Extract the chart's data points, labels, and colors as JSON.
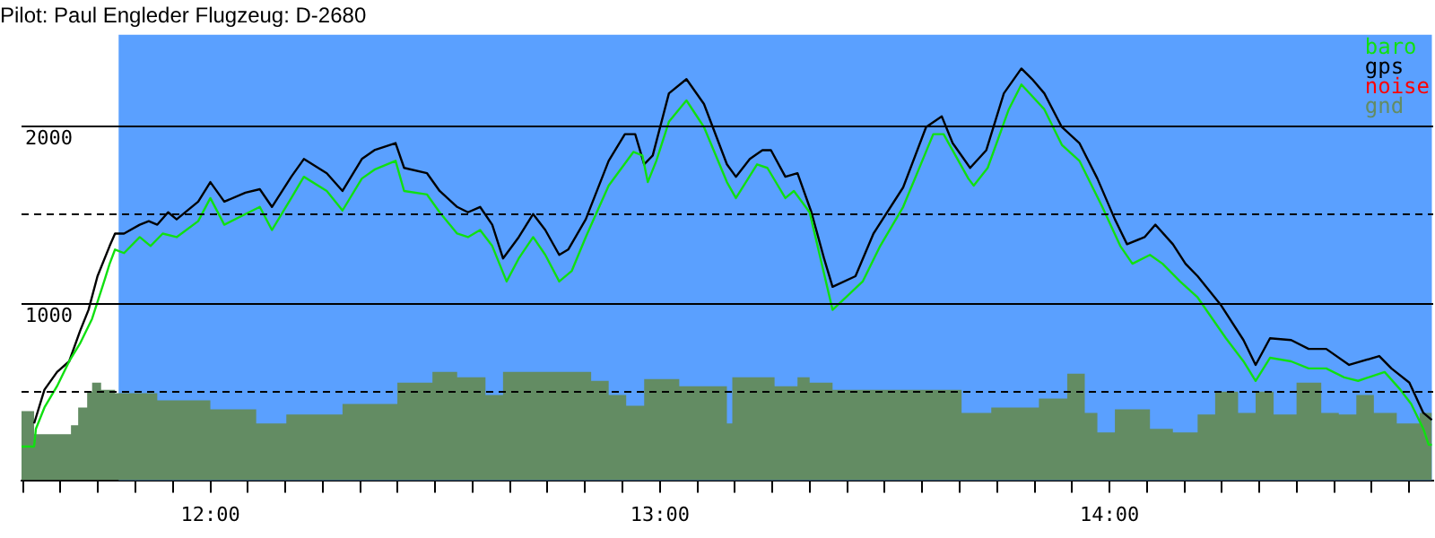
{
  "chart_data": {
    "type": "line",
    "title": "Pilot: Paul Engleder Flugzeug: D-2680",
    "xlim": [
      11.58,
      14.72
    ],
    "xticks": [
      {
        "value": 11.5833,
        "label": null
      },
      {
        "value": 11.6667,
        "label": null
      },
      {
        "value": 11.75,
        "label": null
      },
      {
        "value": 11.8333,
        "label": null
      },
      {
        "value": 11.9167,
        "label": null
      },
      {
        "value": 12,
        "label": "12:00"
      },
      {
        "value": 12.0833,
        "label": null
      },
      {
        "value": 12.1667,
        "label": null
      },
      {
        "value": 12.25,
        "label": null
      },
      {
        "value": 12.3333,
        "label": null
      },
      {
        "value": 12.4167,
        "label": null
      },
      {
        "value": 12.5,
        "label": null
      },
      {
        "value": 12.5833,
        "label": null
      },
      {
        "value": 12.6667,
        "label": null
      },
      {
        "value": 12.75,
        "label": null
      },
      {
        "value": 12.8333,
        "label": null
      },
      {
        "value": 12.9167,
        "label": null
      },
      {
        "value": 13,
        "label": "13:00"
      },
      {
        "value": 13.0833,
        "label": null
      },
      {
        "value": 13.1667,
        "label": null
      },
      {
        "value": 13.25,
        "label": null
      },
      {
        "value": 13.3333,
        "label": null
      },
      {
        "value": 13.4167,
        "label": null
      },
      {
        "value": 13.5,
        "label": null
      },
      {
        "value": 13.5833,
        "label": null
      },
      {
        "value": 13.6667,
        "label": null
      },
      {
        "value": 13.75,
        "label": null
      },
      {
        "value": 13.8333,
        "label": null
      },
      {
        "value": 13.9167,
        "label": null
      },
      {
        "value": 14,
        "label": "14:00"
      },
      {
        "value": 14.0833,
        "label": null
      },
      {
        "value": 14.1667,
        "label": null
      },
      {
        "value": 14.25,
        "label": null
      },
      {
        "value": 14.3333,
        "label": null
      },
      {
        "value": 14.4167,
        "label": null
      },
      {
        "value": 14.5,
        "label": null
      },
      {
        "value": 14.5833,
        "label": null
      },
      {
        "value": 14.6667,
        "label": null
      }
    ],
    "ylim": [
      0,
      2510
    ],
    "yticks": [
      {
        "value": 500,
        "label": null
      },
      1000,
      {
        "value": 1500,
        "label": null
      },
      2000
    ],
    "grid": "y",
    "legend": "top right",
    "bands": [
      {
        "axis": "x",
        "from": 11.796,
        "to": 14.717,
        "color": "#5aa0ff"
      }
    ],
    "series": [
      {
        "name": "gnd",
        "type": "area",
        "color": "#638c63",
        "x": [
          11.58,
          11.608,
          11.608,
          11.69,
          11.69,
          11.706,
          11.706,
          11.726,
          11.726,
          11.737,
          11.737,
          11.757,
          11.757,
          11.788,
          11.788,
          11.882,
          11.882,
          12.0,
          12.0,
          12.102,
          12.102,
          12.169,
          12.169,
          12.294,
          12.294,
          12.416,
          12.416,
          12.494,
          12.494,
          12.549,
          12.549,
          12.612,
          12.612,
          12.651,
          12.651,
          12.847,
          12.847,
          12.886,
          12.886,
          12.925,
          12.925,
          12.965,
          12.965,
          13.043,
          13.043,
          13.149,
          13.149,
          13.161,
          13.161,
          13.255,
          13.255,
          13.306,
          13.306,
          13.333,
          13.333,
          13.384,
          13.384,
          13.671,
          13.671,
          13.737,
          13.737,
          13.843,
          13.843,
          13.906,
          13.906,
          13.945,
          13.945,
          13.973,
          13.973,
          14.012,
          14.012,
          14.09,
          14.09,
          14.141,
          14.141,
          14.196,
          14.196,
          14.235,
          14.235,
          14.286,
          14.286,
          14.325,
          14.325,
          14.365,
          14.365,
          14.416,
          14.416,
          14.471,
          14.471,
          14.51,
          14.51,
          14.549,
          14.549,
          14.588,
          14.588,
          14.639,
          14.639,
          14.69,
          14.69,
          14.717
        ],
        "values": [
          390,
          390,
          260,
          260,
          310,
          310,
          410,
          410,
          500,
          500,
          550,
          550,
          510,
          510,
          490,
          490,
          450,
          450,
          400,
          400,
          320,
          320,
          370,
          370,
          430,
          430,
          550,
          550,
          610,
          610,
          580,
          580,
          480,
          480,
          610,
          610,
          560,
          560,
          480,
          480,
          420,
          420,
          570,
          570,
          530,
          530,
          320,
          320,
          580,
          580,
          530,
          530,
          580,
          580,
          550,
          550,
          510,
          510,
          380,
          380,
          410,
          410,
          460,
          460,
          600,
          600,
          380,
          380,
          270,
          270,
          400,
          400,
          290,
          290,
          270,
          270,
          370,
          370,
          500,
          500,
          380,
          380,
          500,
          500,
          370,
          370,
          550,
          550,
          380,
          380,
          370,
          370,
          480,
          480,
          380,
          380,
          320,
          320,
          380,
          380
        ]
      },
      {
        "name": "baro",
        "color": "#10e010",
        "x": [
          11.58,
          11.608,
          11.612,
          11.631,
          11.659,
          11.686,
          11.71,
          11.737,
          11.765,
          11.776,
          11.788,
          11.808,
          11.843,
          11.867,
          11.894,
          11.925,
          11.973,
          12.0,
          12.031,
          12.078,
          12.11,
          12.137,
          12.18,
          12.208,
          12.259,
          12.294,
          12.337,
          12.365,
          12.412,
          12.431,
          12.482,
          12.51,
          12.549,
          12.573,
          12.6,
          12.627,
          12.659,
          12.686,
          12.718,
          12.745,
          12.776,
          12.804,
          12.835,
          12.886,
          12.941,
          12.961,
          12.973,
          12.992,
          13.02,
          13.059,
          13.098,
          13.149,
          13.169,
          13.216,
          13.239,
          13.279,
          13.298,
          13.333,
          13.384,
          13.451,
          13.49,
          13.541,
          13.608,
          13.631,
          13.686,
          13.698,
          13.729,
          13.776,
          13.804,
          13.855,
          13.894,
          13.933,
          13.984,
          14.024,
          14.051,
          14.09,
          14.118,
          14.157,
          14.196,
          14.259,
          14.298,
          14.325,
          14.357,
          14.404,
          14.443,
          14.482,
          14.522,
          14.553,
          14.612,
          14.647,
          14.671,
          14.698,
          14.71,
          14.717
        ],
        "values": [
          190,
          190,
          290,
          410,
          530,
          670,
          770,
          910,
          1130,
          1220,
          1300,
          1280,
          1370,
          1320,
          1390,
          1370,
          1460,
          1590,
          1440,
          1500,
          1540,
          1410,
          1590,
          1710,
          1630,
          1520,
          1700,
          1750,
          1800,
          1630,
          1610,
          1510,
          1390,
          1370,
          1410,
          1320,
          1120,
          1250,
          1370,
          1270,
          1120,
          1180,
          1370,
          1660,
          1850,
          1830,
          1680,
          1800,
          2020,
          2140,
          1990,
          1680,
          1590,
          1780,
          1760,
          1590,
          1630,
          1510,
          960,
          1120,
          1320,
          1540,
          1950,
          1950,
          1700,
          1660,
          1760,
          2090,
          2230,
          2090,
          1890,
          1800,
          1540,
          1320,
          1220,
          1270,
          1220,
          1120,
          1030,
          800,
          670,
          560,
          690,
          670,
          630,
          630,
          580,
          560,
          610,
          510,
          430,
          290,
          200,
          200
        ]
      },
      {
        "name": "gps",
        "color": "#000000",
        "x": [
          11.608,
          11.631,
          11.659,
          11.686,
          11.71,
          11.729,
          11.749,
          11.776,
          11.788,
          11.808,
          11.843,
          11.863,
          11.882,
          11.906,
          11.925,
          11.973,
          12.0,
          12.031,
          12.078,
          12.11,
          12.137,
          12.18,
          12.208,
          12.259,
          12.294,
          12.337,
          12.365,
          12.412,
          12.431,
          12.482,
          12.51,
          12.549,
          12.573,
          12.6,
          12.627,
          12.651,
          12.686,
          12.718,
          12.745,
          12.776,
          12.796,
          12.835,
          12.886,
          12.922,
          12.945,
          12.965,
          12.984,
          13.02,
          13.059,
          13.098,
          13.149,
          13.169,
          13.2,
          13.228,
          13.247,
          13.279,
          13.306,
          13.337,
          13.365,
          13.384,
          13.435,
          13.475,
          13.541,
          13.592,
          13.627,
          13.651,
          13.69,
          13.726,
          13.765,
          13.804,
          13.828,
          13.855,
          13.894,
          13.933,
          13.973,
          14.012,
          14.039,
          14.078,
          14.102,
          14.141,
          14.169,
          14.196,
          14.247,
          14.298,
          14.325,
          14.357,
          14.404,
          14.443,
          14.482,
          14.533,
          14.6,
          14.627,
          14.667,
          14.698,
          14.717
        ],
        "values": [
          320,
          510,
          610,
          670,
          840,
          960,
          1150,
          1320,
          1390,
          1390,
          1440,
          1460,
          1440,
          1510,
          1470,
          1570,
          1680,
          1570,
          1620,
          1640,
          1540,
          1710,
          1810,
          1730,
          1630,
          1810,
          1860,
          1900,
          1760,
          1730,
          1630,
          1540,
          1510,
          1540,
          1440,
          1250,
          1370,
          1500,
          1410,
          1270,
          1300,
          1470,
          1800,
          1950,
          1950,
          1780,
          1830,
          2180,
          2260,
          2120,
          1780,
          1710,
          1810,
          1860,
          1860,
          1710,
          1730,
          1510,
          1250,
          1090,
          1150,
          1390,
          1650,
          1990,
          2050,
          1900,
          1760,
          1860,
          2180,
          2320,
          2260,
          2180,
          1990,
          1900,
          1700,
          1470,
          1330,
          1370,
          1440,
          1330,
          1220,
          1150,
          990,
          790,
          650,
          800,
          790,
          740,
          740,
          650,
          700,
          630,
          550,
          380,
          340
        ]
      },
      {
        "name": "noise",
        "color": "#ff0000"
      }
    ]
  }
}
